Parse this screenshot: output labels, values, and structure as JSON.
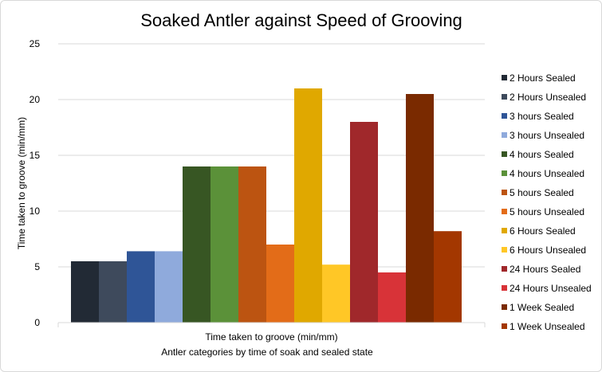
{
  "chart_data": {
    "type": "bar",
    "title": "Soaked Antler against Speed of Grooving",
    "ylabel": "Time taken to groove (min/mm)",
    "xlabel": "Antler categories by time of soak and sealed state",
    "categories": [
      "Time taken to groove (min/mm)"
    ],
    "ylim": [
      0,
      25
    ],
    "yticks": [
      0,
      5,
      10,
      15,
      20,
      25
    ],
    "grid": true,
    "legend_position": "right",
    "series": [
      {
        "name": "2 Hours Sealed",
        "values": [
          5.5
        ],
        "color": "#222a35"
      },
      {
        "name": "2 Hours Unsealed",
        "values": [
          5.5
        ],
        "color": "#3e4a5c"
      },
      {
        "name": "3 hours Sealed",
        "values": [
          6.4
        ],
        "color": "#2f5597"
      },
      {
        "name": "3 hours Unsealed",
        "values": [
          6.4
        ],
        "color": "#8faadc"
      },
      {
        "name": "4 hours Sealed",
        "values": [
          14
        ],
        "color": "#375623"
      },
      {
        "name": "4 hours Unsealed",
        "values": [
          14
        ],
        "color": "#5b9139"
      },
      {
        "name": "5 hours Sealed",
        "values": [
          14
        ],
        "color": "#bc5411"
      },
      {
        "name": "5 hours Unsealed",
        "values": [
          7
        ],
        "color": "#e36c18"
      },
      {
        "name": "6 Hours Sealed",
        "values": [
          21
        ],
        "color": "#e0a800"
      },
      {
        "name": "6 Hours Unsealed",
        "values": [
          5.2
        ],
        "color": "#ffc726"
      },
      {
        "name": "24 Hours Sealed",
        "values": [
          18
        ],
        "color": "#a0282b"
      },
      {
        "name": "24 Hours Unsealed",
        "values": [
          4.5
        ],
        "color": "#d83338"
      },
      {
        "name": "1 Week Sealed",
        "values": [
          20.5
        ],
        "color": "#7a2a00"
      },
      {
        "name": "1 Week Unsealed",
        "values": [
          8.2
        ],
        "color": "#a33700"
      }
    ]
  }
}
